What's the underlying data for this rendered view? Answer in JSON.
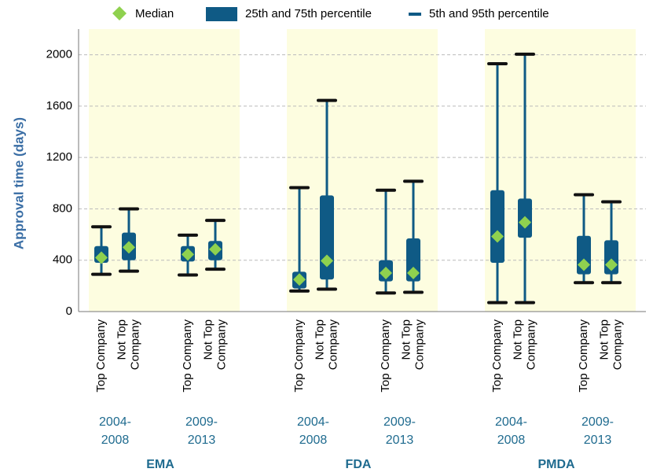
{
  "chart_data": {
    "type": "box",
    "ylabel": "Approval time (days)",
    "ylim": [
      0,
      2200
    ],
    "yticks": [
      0,
      400,
      800,
      1200,
      1600,
      2000
    ],
    "grid": true,
    "box_color": "#0f5a85",
    "median_color": "#8fd14f",
    "band_color": "#fdfde0",
    "legend": [
      "Median",
      "25th and 75th percentile",
      "5th and 95th percentile"
    ],
    "groups": [
      {
        "name": "EMA",
        "periods": [
          {
            "label": [
              "2004-",
              "2008"
            ],
            "boxes": [
              {
                "label": [
                  "Top Company"
                ],
                "p5": 290,
                "p25": 380,
                "median": 420,
                "p75": 510,
                "p95": 660
              },
              {
                "label": [
                  "Not Top",
                  "Company"
                ],
                "p5": 315,
                "p25": 400,
                "median": 500,
                "p75": 615,
                "p95": 800
              }
            ]
          },
          {
            "label": [
              "2009-",
              "2013"
            ],
            "boxes": [
              {
                "label": [
                  "Top Company"
                ],
                "p5": 285,
                "p25": 390,
                "median": 445,
                "p75": 510,
                "p95": 595
              },
              {
                "label": [
                  "Not Top",
                  "Company"
                ],
                "p5": 330,
                "p25": 400,
                "median": 485,
                "p75": 550,
                "p95": 710
              }
            ]
          }
        ]
      },
      {
        "name": "FDA",
        "periods": [
          {
            "label": [
              "2004-",
              "2008"
            ],
            "boxes": [
              {
                "label": [
                  "Top Company"
                ],
                "p5": 160,
                "p25": 180,
                "median": 250,
                "p75": 310,
                "p95": 965
              },
              {
                "label": [
                  "Not Top",
                  "Company"
                ],
                "p5": 175,
                "p25": 250,
                "median": 395,
                "p75": 905,
                "p95": 1645
              }
            ]
          },
          {
            "label": [
              "2009-",
              "2013"
            ],
            "boxes": [
              {
                "label": [
                  "Top Company"
                ],
                "p5": 145,
                "p25": 235,
                "median": 300,
                "p75": 400,
                "p95": 945
              },
              {
                "label": [
                  "Not Top",
                  "Company"
                ],
                "p5": 150,
                "p25": 235,
                "median": 300,
                "p75": 570,
                "p95": 1015
              }
            ]
          }
        ]
      },
      {
        "name": "PMDA",
        "periods": [
          {
            "label": [
              "2004-",
              "2008"
            ],
            "boxes": [
              {
                "label": [
                  "Top Company"
                ],
                "p5": 70,
                "p25": 380,
                "median": 585,
                "p75": 945,
                "p95": 1930
              },
              {
                "label": [
                  "Not Top",
                  "Company"
                ],
                "p5": 70,
                "p25": 575,
                "median": 695,
                "p75": 880,
                "p95": 2005
              }
            ]
          },
          {
            "label": [
              "2009-",
              "2013"
            ],
            "boxes": [
              {
                "label": [
                  "Top Company"
                ],
                "p5": 225,
                "p25": 290,
                "median": 365,
                "p75": 590,
                "p95": 910
              },
              {
                "label": [
                  "Not Top",
                  "Company"
                ],
                "p5": 225,
                "p25": 290,
                "median": 365,
                "p75": 555,
                "p95": 855
              }
            ]
          }
        ]
      }
    ]
  }
}
